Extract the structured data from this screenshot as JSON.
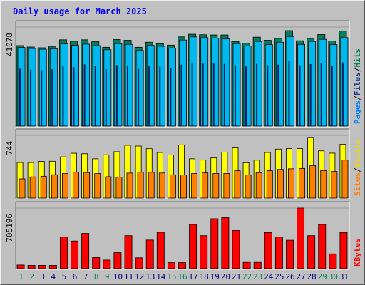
{
  "chart_data": {
    "type": "bar",
    "title": "Daily usage for March 2025",
    "x": [
      "1",
      "2",
      "3",
      "4",
      "5",
      "6",
      "7",
      "8",
      "9",
      "10",
      "11",
      "12",
      "13",
      "14",
      "15",
      "16",
      "17",
      "18",
      "19",
      "20",
      "21",
      "22",
      "23",
      "24",
      "25",
      "26",
      "27",
      "28",
      "29",
      "30",
      "31"
    ],
    "weekend_days": [
      "1",
      "2",
      "8",
      "9",
      "15",
      "16",
      "22",
      "23",
      "29",
      "30"
    ],
    "panels": [
      {
        "id": "hits",
        "y_max_label": "41078",
        "ylim": [
          0,
          41078
        ],
        "legend": [
          {
            "name": "Pages",
            "color": "#0080ff"
          },
          {
            "name": "Files",
            "color": "#1e3a8c"
          },
          {
            "name": "Hits",
            "color": "#00805c"
          }
        ],
        "series": [
          {
            "name": "Hits",
            "color": "#008060",
            "values": [
              33400,
              32800,
              32500,
              32900,
              35800,
              35200,
              35800,
              35000,
              32700,
              35900,
              35600,
              32700,
              34800,
              34200,
              33600,
              37000,
              38100,
              37900,
              37800,
              37800,
              35100,
              34400,
              36900,
              35600,
              36400,
              39600,
              35400,
              36400,
              38000,
              35300,
              39500
            ]
          },
          {
            "name": "Files",
            "color": "#00b8f0",
            "values": [
              32600,
              32200,
              31900,
              32100,
              34100,
              33500,
              34000,
              33400,
              31700,
              34200,
              33900,
              31400,
              33500,
              33100,
              32400,
              35700,
              37000,
              36700,
              36500,
              36200,
              34200,
              33200,
              35100,
              33800,
              34800,
              37100,
              33900,
              35100,
              36000,
              33800,
              36700
            ]
          },
          {
            "name": "Pages",
            "color": "#002060",
            "values": [
              23800,
              23400,
              23200,
              23600,
              24800,
              24500,
              25600,
              24900,
              23600,
              25300,
              24800,
              23700,
              25000,
              24700,
              24100,
              25500,
              26400,
              26300,
              26100,
              25800,
              25200,
              24700,
              25900,
              25200,
              25500,
              26900,
              25200,
              25700,
              26300,
              24800,
              26400
            ]
          }
        ]
      },
      {
        "id": "visits",
        "y_max_label": "744",
        "ylim": [
          0,
          744
        ],
        "legend": [
          {
            "name": "Sites",
            "color": "#ff8000"
          },
          {
            "name": "Visits",
            "color": "#e8d800"
          }
        ],
        "series": [
          {
            "name": "Visits",
            "color": "#ffff00",
            "values": [
              422,
              422,
              435,
              437,
              489,
              532,
              526,
              466,
              513,
              550,
              626,
              617,
              586,
              541,
              512,
              631,
              466,
              451,
              476,
              545,
              596,
              420,
              450,
              541,
              581,
              587,
              587,
              720,
              560,
              533,
              639
            ]
          },
          {
            "name": "Sites",
            "color": "#ff8000",
            "values": [
              228,
              252,
              259,
              277,
              291,
              307,
              303,
              291,
              254,
              248,
              297,
              307,
              306,
              298,
              276,
              275,
              292,
              299,
              292,
              292,
              325,
              275,
              302,
              325,
              341,
              348,
              352,
              385,
              327,
              316,
              451
            ]
          }
        ]
      },
      {
        "id": "kbytes",
        "y_max_label": "705196",
        "ylim": [
          0,
          705196
        ],
        "legend": [
          {
            "name": "KBytes",
            "color": "#ff0000"
          }
        ],
        "series": [
          {
            "name": "KBytes",
            "color": "#ff0000",
            "values": [
              42000,
              38000,
              38000,
              38000,
              369000,
              322000,
              410000,
              130000,
              100000,
              186000,
              384000,
              126000,
              333000,
              423000,
              70000,
              70000,
              514000,
              384000,
              581000,
              593000,
              444000,
              73000,
              73000,
              420000,
              369000,
              331000,
              705196,
              384000,
              514000,
              172000,
              420000
            ]
          }
        ]
      }
    ]
  }
}
